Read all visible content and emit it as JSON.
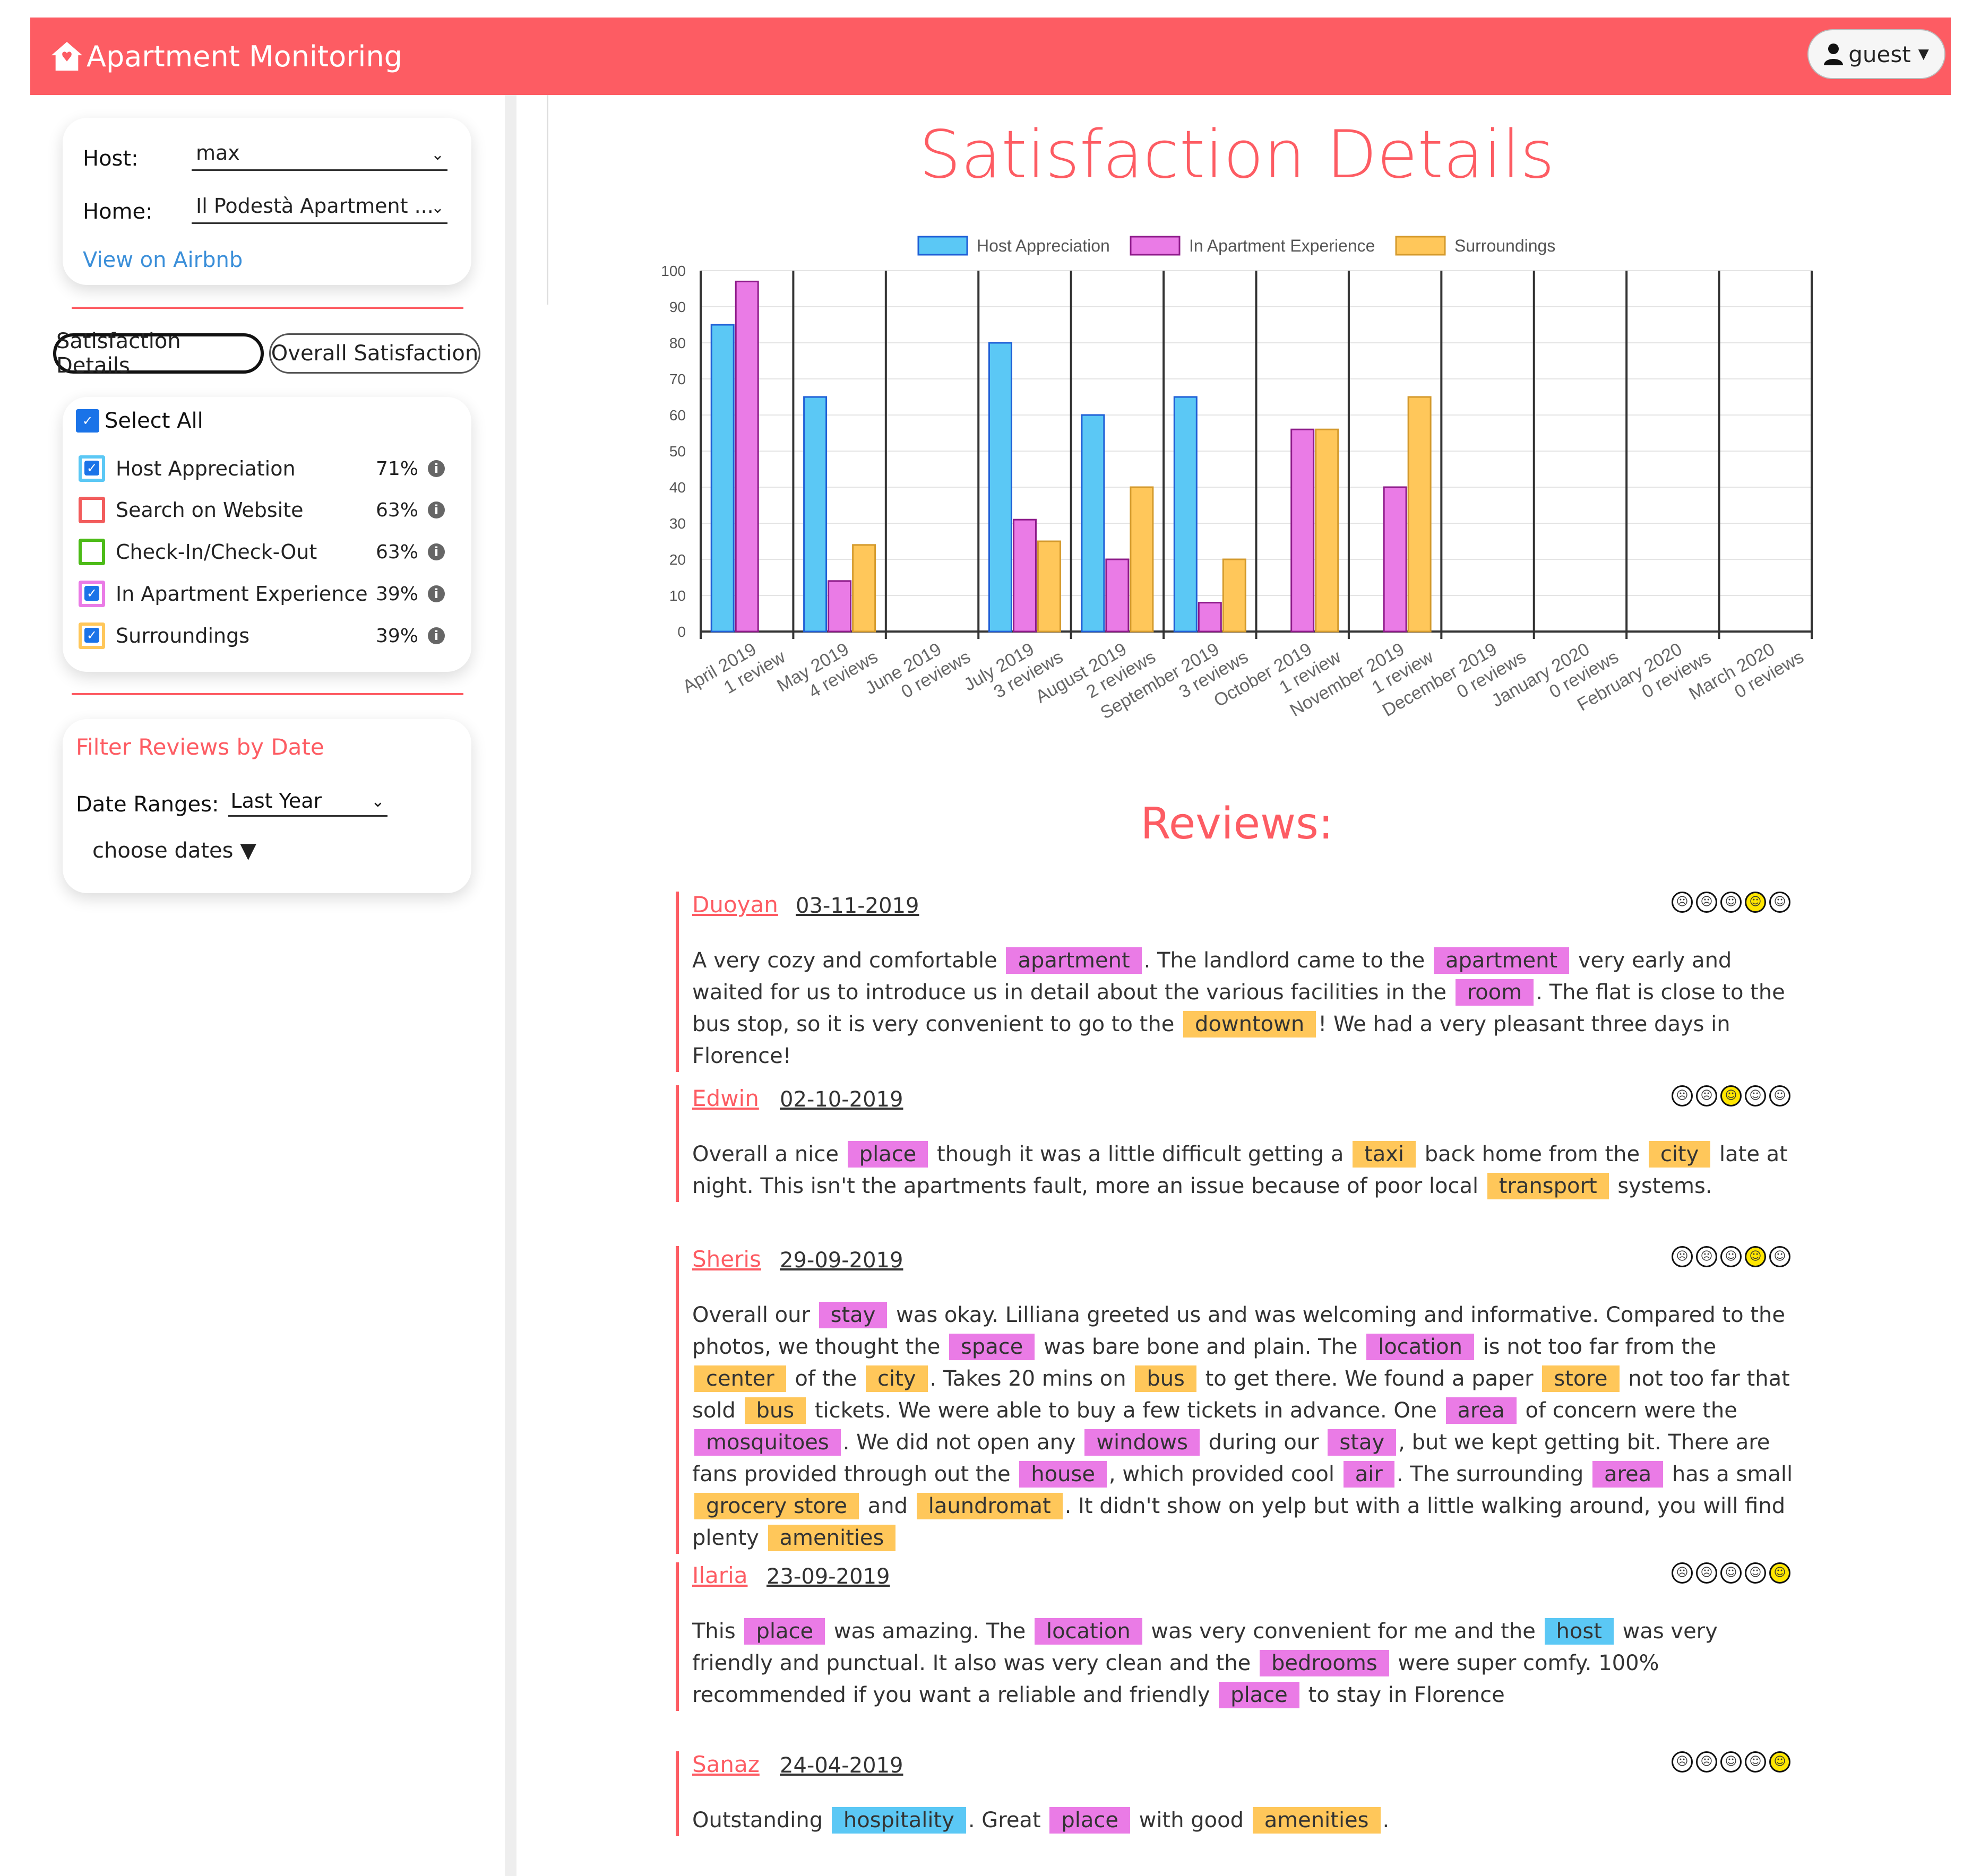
{
  "app": {
    "title": "Apartment Monitoring",
    "user_label": "guest"
  },
  "sidebar": {
    "host_label": "Host:",
    "host_value": "max",
    "home_label": "Home:",
    "home_value": "Il Podestà Apartment ...",
    "airbnb_link": "View on Airbnb",
    "tabs": [
      {
        "label": "Satisfaction Details",
        "active": true
      },
      {
        "label": "Overall Satisfaction",
        "active": false
      }
    ],
    "select_all_label": "Select All",
    "categories": [
      {
        "label": "Host Appreciation",
        "percent": "71%",
        "color": "#5bc8f5",
        "checked": true
      },
      {
        "label": "Search on Website",
        "percent": "63%",
        "color": "#f25c5c",
        "checked": false
      },
      {
        "label": "Check-In/Check-Out",
        "percent": "63%",
        "color": "#4cbb17",
        "checked": false
      },
      {
        "label": "In Apartment Experience",
        "percent": "39%",
        "color": "#ea7be6",
        "checked": true
      },
      {
        "label": "Surroundings",
        "percent": "39%",
        "color": "#ffc75a",
        "checked": true
      }
    ],
    "filter": {
      "title": "Filter Reviews by Date",
      "range_label": "Date Ranges:",
      "range_value": "Last Year",
      "choose_dates": "choose dates ▼"
    }
  },
  "main": {
    "title": "Satisfaction Details",
    "reviews_title": "Reviews:"
  },
  "chart_data": {
    "type": "bar",
    "title": "",
    "ylim": [
      0,
      100
    ],
    "yticks": [
      0,
      10,
      20,
      30,
      40,
      50,
      60,
      70,
      80,
      90,
      100
    ],
    "legend_position": "top",
    "grid": "horizontal light gridlines, vertical separators between months",
    "categories": [
      [
        "April 2019",
        "1 review"
      ],
      [
        "May 2019",
        "4 reviews"
      ],
      [
        "June 2019",
        "0 reviews"
      ],
      [
        "July 2019",
        "3 reviews"
      ],
      [
        "August 2019",
        "2 reviews"
      ],
      [
        "September 2019",
        "3 reviews"
      ],
      [
        "October 2019",
        "1 review"
      ],
      [
        "November 2019",
        "1 review"
      ],
      [
        "December 2019",
        "0 reviews"
      ],
      [
        "January 2020",
        "0 reviews"
      ],
      [
        "February 2020",
        "0 reviews"
      ],
      [
        "March 2020",
        "0 reviews"
      ]
    ],
    "series": [
      {
        "name": "Host Appreciation",
        "color": "#5bc8f5",
        "border": "#1f5fd6",
        "values": [
          85,
          65,
          null,
          80,
          60,
          65,
          null,
          null,
          null,
          null,
          null,
          null
        ]
      },
      {
        "name": "In Apartment Experience",
        "color": "#ea7be6",
        "border": "#8e1b8a",
        "values": [
          97,
          14,
          null,
          31,
          20,
          8,
          56,
          40,
          null,
          null,
          null,
          null
        ]
      },
      {
        "name": "Surroundings",
        "color": "#ffc75a",
        "border": "#d49a2c",
        "values": [
          null,
          24,
          null,
          25,
          40,
          20,
          56,
          65,
          null,
          null,
          null,
          null
        ]
      }
    ]
  },
  "reviews": [
    {
      "author": "Duoyan",
      "date": "03-11-2019",
      "rating": 4,
      "segments": [
        {
          "t": "A very cozy and comfortable "
        },
        {
          "t": "apartment",
          "c": "apt"
        },
        {
          "t": ". The landlord came to the "
        },
        {
          "t": "apartment",
          "c": "apt"
        },
        {
          "t": " very early and waited for us to introduce us in detail about the various facilities in the "
        },
        {
          "t": "room",
          "c": "apt"
        },
        {
          "t": ". The flat is close to the bus stop, so it is very convenient to go to the "
        },
        {
          "t": "downtown",
          "c": "sur"
        },
        {
          "t": "! We had a very pleasant three days in Florence!"
        }
      ]
    },
    {
      "author": "Edwin",
      "date": "02-10-2019",
      "rating": 3,
      "segments": [
        {
          "t": "Overall a nice "
        },
        {
          "t": "place",
          "c": "apt"
        },
        {
          "t": " though it was a little difficult getting a "
        },
        {
          "t": "taxi",
          "c": "sur"
        },
        {
          "t": " back home from the "
        },
        {
          "t": "city",
          "c": "sur"
        },
        {
          "t": " late at night. This isn't the apartments fault, more an issue because of poor local "
        },
        {
          "t": "transport",
          "c": "sur"
        },
        {
          "t": " systems."
        }
      ]
    },
    {
      "author": "Sheris",
      "date": "29-09-2019",
      "rating": 4,
      "segments": [
        {
          "t": "Overall our "
        },
        {
          "t": "stay",
          "c": "apt"
        },
        {
          "t": " was okay. Lilliana greeted us and was welcoming and informative. Compared to the photos, we thought the "
        },
        {
          "t": "space",
          "c": "apt"
        },
        {
          "t": " was bare bone and plain. The "
        },
        {
          "t": "location",
          "c": "apt"
        },
        {
          "t": " is not too far from the "
        },
        {
          "t": "center",
          "c": "sur"
        },
        {
          "t": " of the "
        },
        {
          "t": "city",
          "c": "sur"
        },
        {
          "t": ". Takes 20 mins on "
        },
        {
          "t": "bus",
          "c": "sur"
        },
        {
          "t": " to get there. We found a paper "
        },
        {
          "t": "store",
          "c": "sur"
        },
        {
          "t": " not too far that sold "
        },
        {
          "t": "bus",
          "c": "sur"
        },
        {
          "t": " tickets. We were able to buy a few tickets in advance. One "
        },
        {
          "t": "area",
          "c": "apt"
        },
        {
          "t": " of concern were the "
        },
        {
          "t": "mosquitoes",
          "c": "apt"
        },
        {
          "t": ". We did not open any "
        },
        {
          "t": "windows",
          "c": "apt"
        },
        {
          "t": " during our "
        },
        {
          "t": "stay",
          "c": "apt"
        },
        {
          "t": ", but we kept getting bit. There are fans provided through out the "
        },
        {
          "t": "house",
          "c": "apt"
        },
        {
          "t": ", which provided cool "
        },
        {
          "t": "air",
          "c": "apt"
        },
        {
          "t": ". The surrounding "
        },
        {
          "t": "area",
          "c": "apt"
        },
        {
          "t": " has a small "
        },
        {
          "t": "grocery store",
          "c": "sur"
        },
        {
          "t": " and "
        },
        {
          "t": "laundromat",
          "c": "sur"
        },
        {
          "t": ". It didn't show on yelp but with a little walking around, you will find plenty "
        },
        {
          "t": "amenities",
          "c": "sur"
        }
      ]
    },
    {
      "author": "Ilaria",
      "date": "23-09-2019",
      "rating": 5,
      "segments": [
        {
          "t": "This "
        },
        {
          "t": "place",
          "c": "apt"
        },
        {
          "t": " was amazing. The "
        },
        {
          "t": "location",
          "c": "apt"
        },
        {
          "t": " was very convenient for me and the "
        },
        {
          "t": "host",
          "c": "host"
        },
        {
          "t": " was very friendly and punctual. It also was very clean and the "
        },
        {
          "t": "bedrooms",
          "c": "apt"
        },
        {
          "t": " were super comfy. 100% recommended if you want a reliable and friendly "
        },
        {
          "t": "place",
          "c": "apt"
        },
        {
          "t": " to stay in Florence"
        }
      ]
    },
    {
      "author": "Sanaz",
      "date": "24-04-2019",
      "rating": 5,
      "segments": [
        {
          "t": "Outstanding "
        },
        {
          "t": "hospitality",
          "c": "host"
        },
        {
          "t": ". Great "
        },
        {
          "t": "place",
          "c": "apt"
        },
        {
          "t": " with good "
        },
        {
          "t": "amenities",
          "c": "sur"
        },
        {
          "t": "."
        }
      ]
    }
  ]
}
